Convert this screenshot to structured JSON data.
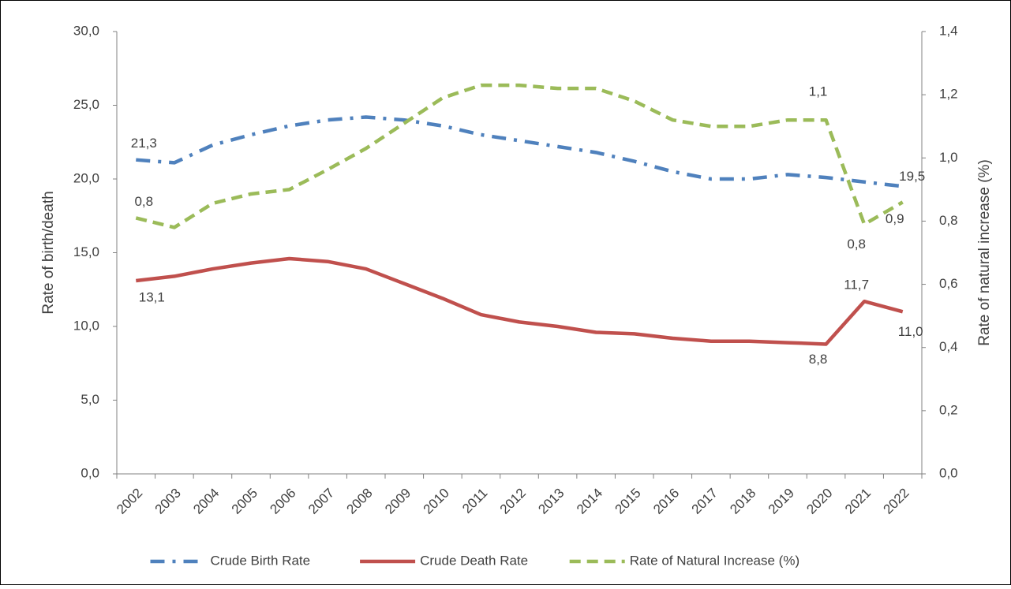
{
  "chart_data": {
    "type": "line",
    "categories": [
      "2002",
      "2003",
      "2004",
      "2005",
      "2006",
      "2007",
      "2008",
      "2009",
      "2010",
      "2011",
      "2012",
      "2013",
      "2014",
      "2015",
      "2016",
      "2017",
      "2018",
      "2019",
      "2020",
      "2021",
      "2022"
    ],
    "y_label": "Rate of birth/death",
    "y2_label": "Rate of natural increase (%)",
    "ylim": [
      0,
      30
    ],
    "yticks": [
      {
        "value": 0,
        "label": "0,0"
      },
      {
        "value": 5,
        "label": "5,0"
      },
      {
        "value": 10,
        "label": "10,0"
      },
      {
        "value": 15,
        "label": "15,0"
      },
      {
        "value": 20,
        "label": "20,0"
      },
      {
        "value": 25,
        "label": "25,0"
      },
      {
        "value": 30,
        "label": "30,0"
      }
    ],
    "y2lim": [
      0,
      1.4
    ],
    "y2ticks": [
      {
        "value": 0,
        "label": "0,0"
      },
      {
        "value": 0.2,
        "label": "0,2"
      },
      {
        "value": 0.4,
        "label": "0,4"
      },
      {
        "value": 0.6,
        "label": "0,6"
      },
      {
        "value": 0.8,
        "label": "0,8"
      },
      {
        "value": 1.0,
        "label": "1,0"
      },
      {
        "value": 1.2,
        "label": "1,2"
      },
      {
        "value": 1.4,
        "label": "1,4"
      }
    ],
    "legend": "bottom",
    "series": [
      {
        "name": "Crude Birth Rate",
        "color": "#4f81bd",
        "dash": "dash-dot",
        "values": [
          21.3,
          21.1,
          22.3,
          23.0,
          23.6,
          24.0,
          24.2,
          24.0,
          23.6,
          23.0,
          22.6,
          22.2,
          21.8,
          21.2,
          20.5,
          20.0,
          20.0,
          20.3,
          20.1,
          19.8,
          19.5
        ],
        "value_labels": [
          "21,3",
          null,
          null,
          null,
          null,
          null,
          null,
          null,
          null,
          null,
          null,
          null,
          null,
          null,
          null,
          null,
          null,
          null,
          null,
          null,
          "19,5"
        ]
      },
      {
        "name": "Crude Death Rate",
        "color": "#c0504d",
        "dash": "solid",
        "values": [
          13.1,
          13.4,
          13.9,
          14.3,
          14.6,
          14.4,
          13.9,
          12.9,
          11.9,
          10.8,
          10.3,
          10.0,
          9.6,
          9.5,
          9.2,
          9.0,
          9.0,
          8.9,
          8.8,
          11.7,
          11.0
        ],
        "value_labels": [
          "13,1",
          null,
          null,
          null,
          null,
          null,
          null,
          null,
          null,
          null,
          null,
          null,
          null,
          null,
          null,
          null,
          null,
          null,
          "8,8",
          "11,7",
          "11,0"
        ]
      },
      {
        "name": "Rate of Natural Increase (%)",
        "color": "#9bbb59",
        "dash": "dash",
        "axis": "y2",
        "values": [
          0.81,
          0.78,
          0.856,
          0.886,
          0.9,
          0.963,
          1.03,
          1.11,
          1.19,
          1.23,
          1.23,
          1.22,
          1.22,
          1.18,
          1.12,
          1.1,
          1.1,
          1.12,
          1.12,
          0.79,
          0.86
        ],
        "value_labels": [
          "0,8",
          null,
          null,
          null,
          null,
          null,
          null,
          null,
          null,
          null,
          null,
          null,
          null,
          null,
          null,
          null,
          null,
          null,
          "1,1",
          "0,8",
          "0,9"
        ]
      }
    ]
  }
}
